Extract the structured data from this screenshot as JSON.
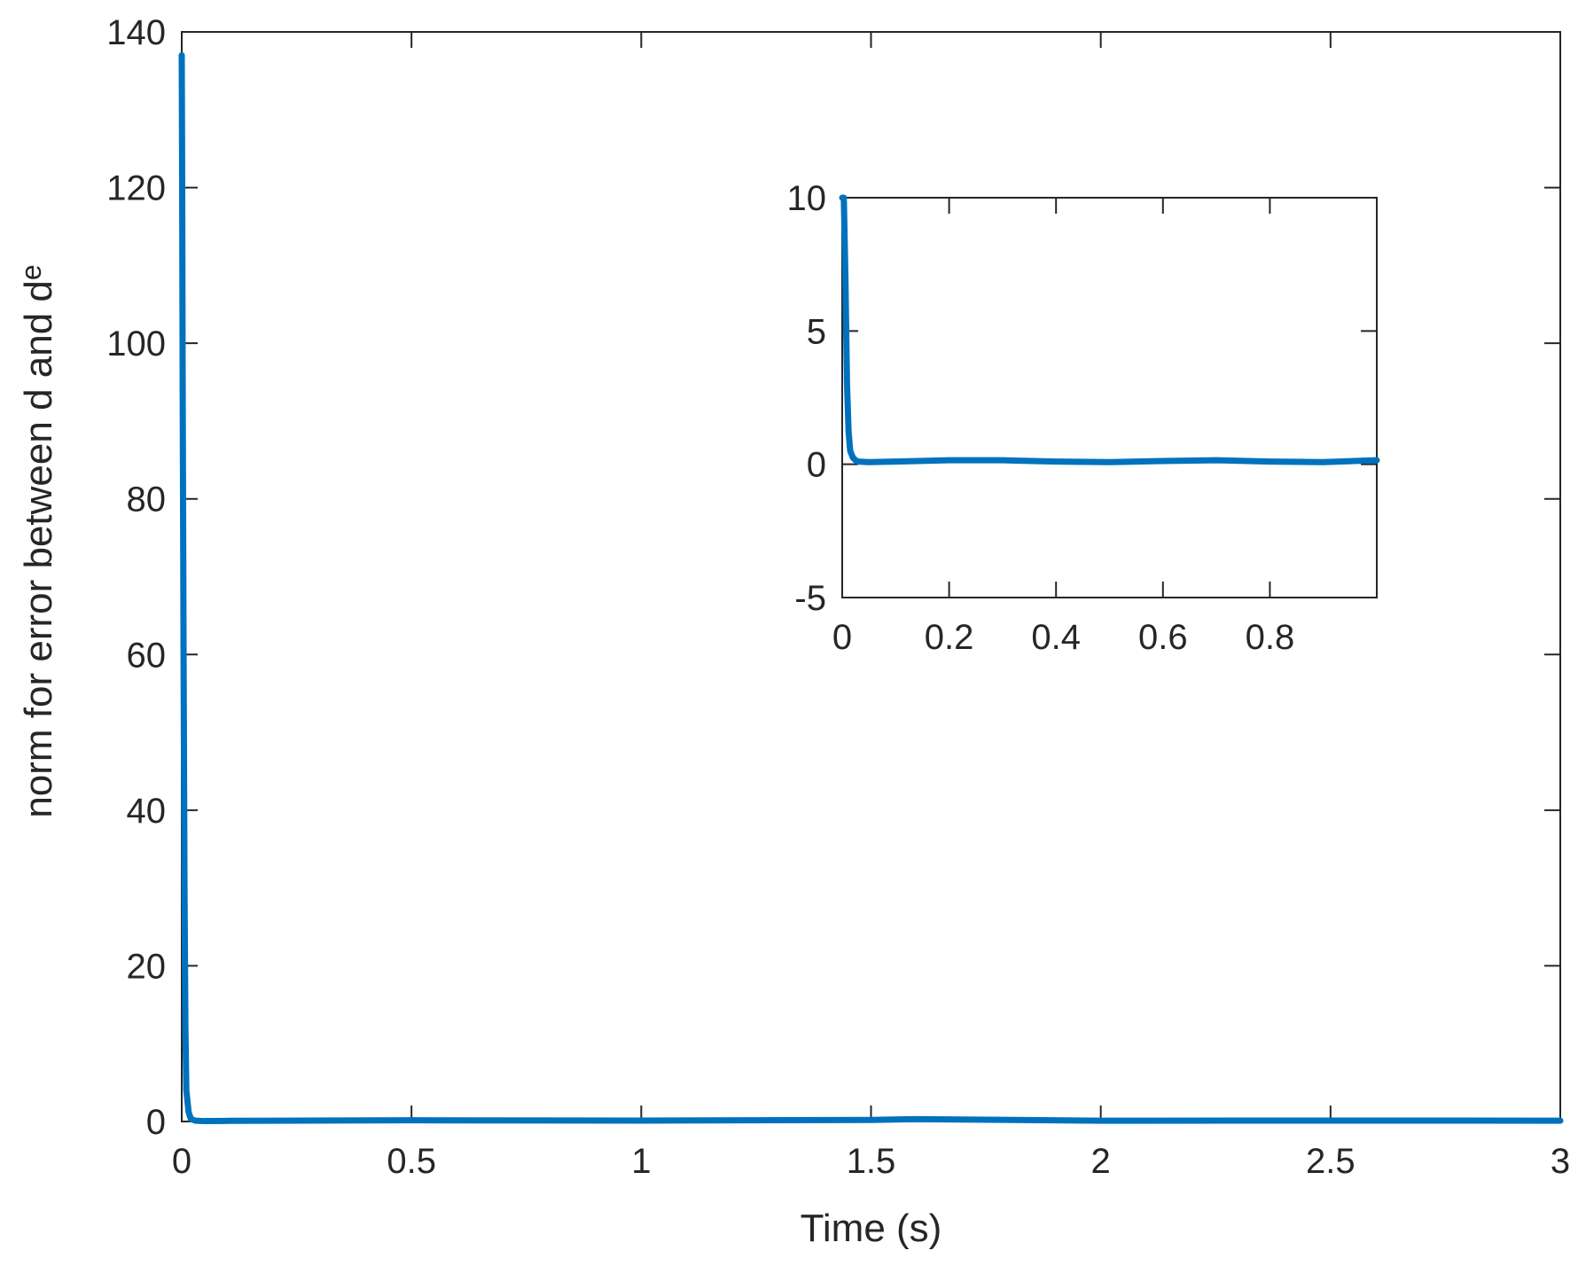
{
  "chart_data": [
    {
      "type": "line",
      "title": "",
      "xlabel": "Time (s)",
      "ylabel_main": "norm for error between d and d",
      "ylabel_subscript": "e",
      "xlim": [
        0,
        3
      ],
      "ylim": [
        0,
        140
      ],
      "xticks": [
        0,
        0.5,
        1,
        1.5,
        2,
        2.5,
        3
      ],
      "xtick_labels": [
        "0",
        "0.5",
        "1",
        "1.5",
        "2",
        "2.5",
        "3"
      ],
      "yticks": [
        0,
        20,
        40,
        60,
        80,
        100,
        120,
        140
      ],
      "ytick_labels": [
        "0",
        "20",
        "40",
        "60",
        "80",
        "100",
        "120",
        "140"
      ],
      "grid": false,
      "color": "#0072BD",
      "series": [
        {
          "x": [
            0,
            0.001,
            0.002,
            0.004,
            0.006,
            0.008,
            0.01,
            0.015,
            0.02,
            0.03,
            0.05,
            0.1,
            0.2,
            0.5,
            1.0,
            1.5,
            1.6,
            2.0,
            2.5,
            3.0
          ],
          "y": [
            137,
            120,
            95,
            60,
            30,
            12,
            4,
            1.2,
            0.3,
            0.1,
            0.05,
            0.08,
            0.1,
            0.15,
            0.12,
            0.2,
            0.3,
            0.1,
            0.12,
            0.1
          ]
        }
      ]
    },
    {
      "type": "line",
      "title": "",
      "xlabel": "",
      "ylabel": "",
      "xlim": [
        0,
        1
      ],
      "ylim": [
        -5,
        10
      ],
      "xticks": [
        0,
        0.2,
        0.4,
        0.6,
        0.8
      ],
      "xtick_labels": [
        "0",
        "0.2",
        "0.4",
        "0.6",
        "0.8"
      ],
      "yticks": [
        -5,
        0,
        5,
        10
      ],
      "ytick_labels": [
        "-5",
        "0",
        "5",
        "10"
      ],
      "grid": false,
      "color": "#0072BD",
      "series": [
        {
          "x": [
            0.0,
            0.003,
            0.006,
            0.009,
            0.012,
            0.015,
            0.02,
            0.025,
            0.03,
            0.05,
            0.1,
            0.2,
            0.3,
            0.4,
            0.5,
            0.6,
            0.7,
            0.8,
            0.9,
            1.0
          ],
          "y": [
            10,
            10,
            7,
            3,
            1.2,
            0.5,
            0.25,
            0.15,
            0.1,
            0.08,
            0.1,
            0.15,
            0.15,
            0.1,
            0.08,
            0.12,
            0.15,
            0.1,
            0.08,
            0.15
          ]
        }
      ]
    }
  ]
}
